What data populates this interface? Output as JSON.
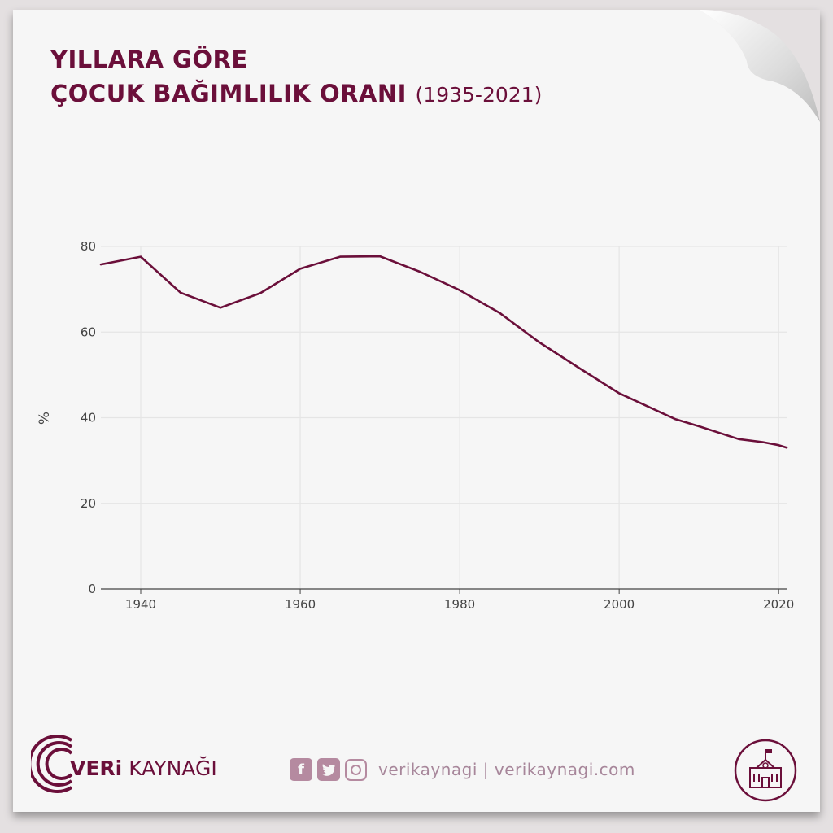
{
  "title": {
    "line1": "YILLARA GÖRE",
    "line2": "ÇOCUK BAĞIMLILIK ORANI",
    "subtitle": "(1935-2021)"
  },
  "colors": {
    "accent": "#6b0f3a",
    "line": "#6b0f3a",
    "social": "#b58aa0",
    "grid": "#e5e5e5"
  },
  "chart_data": {
    "type": "line",
    "title": "YILLARA GÖRE ÇOCUK BAĞIMLILIK ORANI (1935-2021)",
    "xlabel": "",
    "ylabel": "%",
    "xlim": [
      1935,
      2021
    ],
    "ylim": [
      0,
      80
    ],
    "xticks": [
      1940,
      1960,
      1980,
      2000,
      2020
    ],
    "yticks": [
      0,
      20,
      40,
      60,
      80
    ],
    "grid": true,
    "x": [
      1935,
      1940,
      1945,
      1950,
      1955,
      1960,
      1965,
      1970,
      1975,
      1980,
      1985,
      1990,
      1995,
      2000,
      2007,
      2010,
      2015,
      2018,
      2020,
      2021
    ],
    "y": [
      75.8,
      77.6,
      69.2,
      65.7,
      69.1,
      74.8,
      77.6,
      77.7,
      74.1,
      69.8,
      64.5,
      57.6,
      51.6,
      45.7,
      39.7,
      38.0,
      35.0,
      34.3,
      33.6,
      33.0
    ]
  },
  "footer": {
    "brand_bold": "VERi",
    "brand_light": "KAYNAĞI",
    "social_text": "verikaynagi | verikaynagi.com",
    "icons": [
      "facebook-icon",
      "twitter-icon",
      "instagram-icon",
      "school-building-icon"
    ]
  }
}
